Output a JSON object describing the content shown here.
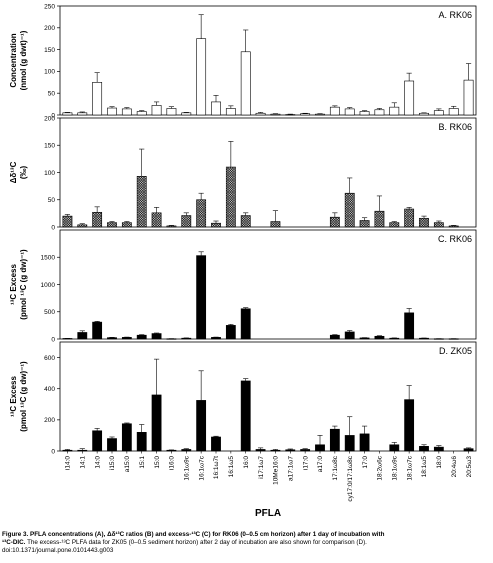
{
  "chart_data": [
    {
      "type": "bar",
      "panel_label": "A. RK06",
      "ylabel": [
        "Concentration",
        "(nmol (g dwt)⁻¹)"
      ],
      "ylim": [
        0,
        250
      ],
      "yticks": [
        0,
        50,
        100,
        150,
        200,
        250
      ],
      "fill": "white",
      "values": [
        5,
        5,
        75,
        16,
        14,
        8,
        22,
        15,
        5,
        175,
        30,
        15,
        145,
        4,
        2,
        1,
        3,
        2,
        18,
        14,
        8,
        12,
        18,
        78,
        4,
        10,
        15,
        80
      ],
      "errors": [
        1,
        2,
        22,
        3,
        3,
        2,
        8,
        4,
        1,
        55,
        15,
        6,
        50,
        2,
        1,
        1,
        1,
        1,
        3,
        3,
        2,
        3,
        10,
        18,
        1,
        4,
        5,
        38
      ]
    },
    {
      "type": "bar",
      "panel_label": "B. RK06",
      "ylabel": [
        "Δδ¹³C",
        "(‰)"
      ],
      "ylim": [
        0,
        200
      ],
      "yticks": [
        0,
        50,
        100,
        150,
        200
      ],
      "fill": "crosshatch",
      "values": [
        20,
        4,
        27,
        8,
        8,
        93,
        26,
        2,
        21,
        50,
        7,
        110,
        21,
        0,
        10,
        0,
        0,
        0,
        18,
        62,
        12,
        29,
        8,
        33,
        16,
        8,
        2,
        0
      ],
      "errors": [
        3,
        2,
        10,
        2,
        2,
        50,
        10,
        1,
        5,
        12,
        4,
        47,
        5,
        0,
        20,
        0,
        0,
        0,
        8,
        28,
        5,
        28,
        2,
        3,
        4,
        3,
        1,
        0
      ]
    },
    {
      "type": "bar",
      "panel_label": "C. RK06",
      "ylabel": [
        "¹³C Excess",
        "(pmol ¹³C (g dw)⁻¹)"
      ],
      "ylim": [
        0,
        2000
      ],
      "yticks": [
        0,
        500,
        1000,
        1500
      ],
      "fill": "black",
      "values": [
        10,
        120,
        310,
        25,
        30,
        70,
        100,
        5,
        15,
        1530,
        30,
        250,
        555,
        0,
        0,
        0,
        0,
        0,
        70,
        130,
        20,
        50,
        15,
        480,
        15,
        5,
        5,
        0
      ],
      "errors": [
        2,
        30,
        15,
        5,
        5,
        10,
        10,
        2,
        5,
        70,
        5,
        20,
        20,
        0,
        0,
        0,
        0,
        0,
        10,
        25,
        5,
        10,
        5,
        80,
        3,
        2,
        2,
        0
      ]
    },
    {
      "type": "bar",
      "panel_label": "D. ZK05",
      "ylabel": [
        "¹³C Excess",
        "(pmol ¹³C (g dw)⁻¹)"
      ],
      "ylim": [
        0,
        700
      ],
      "yticks": [
        0,
        200,
        400,
        600
      ],
      "fill": "black",
      "values": [
        5,
        5,
        130,
        80,
        175,
        120,
        360,
        5,
        10,
        325,
        90,
        0,
        450,
        10,
        5,
        8,
        10,
        40,
        140,
        100,
        110,
        0,
        40,
        330,
        30,
        25,
        0,
        15
      ],
      "errors": [
        5,
        10,
        15,
        10,
        5,
        50,
        230,
        2,
        5,
        190,
        5,
        0,
        15,
        10,
        5,
        5,
        5,
        60,
        20,
        120,
        50,
        0,
        15,
        90,
        10,
        10,
        0,
        5
      ]
    }
  ],
  "categories": [
    "i14:0",
    "14:1",
    "14:0",
    "i15:0",
    "a15:0",
    "15:1",
    "15:0",
    "i16:0",
    "16:1ω9c",
    "16:1ω7c",
    "16:1ω7t",
    "16:1ω5",
    "16:0",
    "i17:1ω7",
    "10Me16:0",
    "a17:1ω7",
    "i17:0",
    "a17:0",
    "17:1ω8c",
    "cy17:0/17:1ω8c",
    "17:0",
    "18:2ω6c",
    "18:1ω9c",
    "18:1ω7c",
    "18:1ω5",
    "18:0",
    "20:4ω6",
    "20:5ω3"
  ],
  "xlabel": "PFLA",
  "caption": {
    "line1_bold": "Figure 3. PFLA concentrations (A), Δδ¹³C ratios (B) and excess-¹³C (C) for RK06 (0–0.5 cm horizon) after 1 day of incubation with",
    "line2_bold": "¹³C-DIC.",
    "line2_rest": " The excess-¹³C PLFA data for ZK05 (0–0.5 sediment horizon) after 2 day of incubation are also shown for comparison (D).",
    "doi": "doi:10.1371/journal.pone.0101443.g003"
  }
}
